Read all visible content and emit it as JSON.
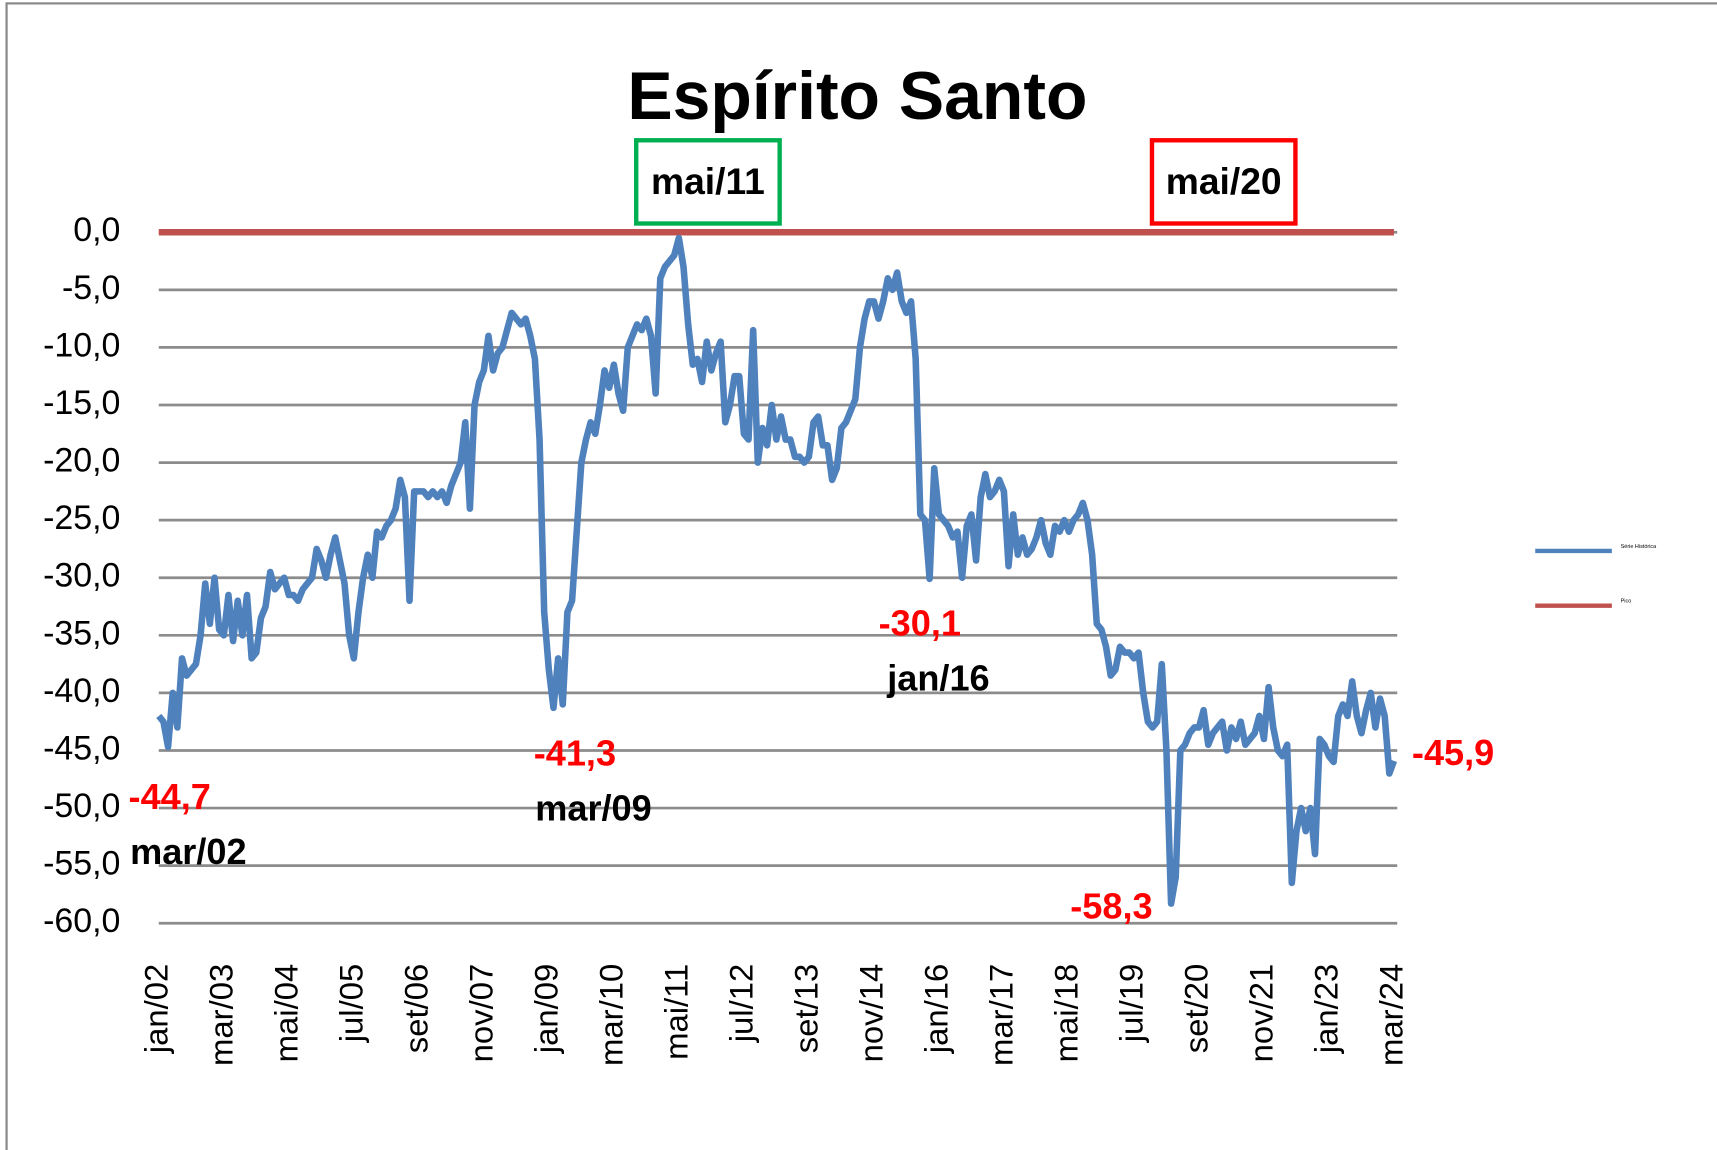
{
  "chart_data": {
    "type": "line",
    "title": "Espírito Santo",
    "markers": [
      {
        "label": "mai/11",
        "color": "#00b050"
      },
      {
        "label": "mai/20",
        "color": "#ff0000"
      }
    ],
    "annotations": [
      {
        "text": "-44,7",
        "value": -44.7,
        "date": "mar/02"
      },
      {
        "text": "-41,3",
        "value": -41.3,
        "date": "mar/09"
      },
      {
        "text": "-30,1",
        "value": -30.1,
        "date": "jan/16"
      },
      {
        "text": "-58,3",
        "value": -58.3
      },
      {
        "text": "-45,9",
        "value": -45.9
      }
    ],
    "ylim": [
      -60,
      0
    ],
    "yticks": [
      {
        "value": 0,
        "label": "0,0"
      },
      {
        "value": -5,
        "label": "-5,0"
      },
      {
        "value": -10,
        "label": "-10,0"
      },
      {
        "value": -15,
        "label": "-15,0"
      },
      {
        "value": -20,
        "label": "-20,0"
      },
      {
        "value": -25,
        "label": "-25,0"
      },
      {
        "value": -30,
        "label": "-30,0"
      },
      {
        "value": -35,
        "label": "-35,0"
      },
      {
        "value": -40,
        "label": "-40,0"
      },
      {
        "value": -45,
        "label": "-45,0"
      },
      {
        "value": -50,
        "label": "-50,0"
      },
      {
        "value": -55,
        "label": "-55,0"
      },
      {
        "value": -60,
        "label": "-60,0"
      }
    ],
    "grid": true,
    "legend": "right",
    "categories": [
      "jan/02",
      null,
      null,
      null,
      null,
      null,
      null,
      null,
      null,
      null,
      null,
      null,
      null,
      null,
      "mar/03",
      null,
      null,
      null,
      null,
      null,
      null,
      null,
      null,
      null,
      null,
      null,
      null,
      null,
      "mai/04",
      null,
      null,
      null,
      null,
      null,
      null,
      null,
      null,
      null,
      null,
      null,
      null,
      null,
      "jul/05",
      null,
      null,
      null,
      null,
      null,
      null,
      null,
      null,
      null,
      null,
      null,
      null,
      null,
      "set/06",
      null,
      null,
      null,
      null,
      null,
      null,
      null,
      null,
      null,
      null,
      null,
      null,
      null,
      "nov/07",
      null,
      null,
      null,
      null,
      null,
      null,
      null,
      null,
      null,
      null,
      null,
      null,
      null,
      "jan/09",
      null,
      null,
      null,
      null,
      null,
      null,
      null,
      null,
      null,
      null,
      null,
      null,
      null,
      "mar/10",
      null,
      null,
      null,
      null,
      null,
      null,
      null,
      null,
      null,
      null,
      null,
      null,
      null,
      "mai/11",
      null,
      null,
      null,
      null,
      null,
      null,
      null,
      null,
      null,
      null,
      null,
      null,
      null,
      "jul/12",
      null,
      null,
      null,
      null,
      null,
      null,
      null,
      null,
      null,
      null,
      null,
      null,
      null,
      "set/13",
      null,
      null,
      null,
      null,
      null,
      null,
      null,
      null,
      null,
      null,
      null,
      null,
      null,
      "nov/14",
      null,
      null,
      null,
      null,
      null,
      null,
      null,
      null,
      null,
      null,
      null,
      null,
      null,
      "jan/16",
      null,
      null,
      null,
      null,
      null,
      null,
      null,
      null,
      null,
      null,
      null,
      null,
      null,
      "mar/17",
      null,
      null,
      null,
      null,
      null,
      null,
      null,
      null,
      null,
      null,
      null,
      null,
      null,
      "mai/18",
      null,
      null,
      null,
      null,
      null,
      null,
      null,
      null,
      null,
      null,
      null,
      null,
      null,
      "jul/19",
      null,
      null,
      null,
      null,
      null,
      null,
      null,
      null,
      null,
      null,
      null,
      null,
      null,
      "set/20",
      null,
      null,
      null,
      null,
      null,
      null,
      null,
      null,
      null,
      null,
      null,
      null,
      null,
      "nov/21",
      null,
      null,
      null,
      null,
      null,
      null,
      null,
      null,
      null,
      null,
      null,
      null,
      null,
      "jan/23",
      null,
      null,
      null,
      null,
      null,
      null,
      null,
      null,
      null,
      null,
      null,
      null,
      null,
      "mar/24"
    ],
    "series": [
      {
        "name": "Série Histórica",
        "color": "#4f81bd",
        "values": [
          -42,
          -42.5,
          -44.7,
          -40,
          -43,
          -37,
          -38.5,
          -38,
          -37.5,
          -35,
          -30.5,
          -34,
          -30,
          -34.5,
          -35,
          -31.5,
          -35.5,
          -32,
          -35,
          -31.5,
          -37,
          -36.5,
          -33.5,
          -32.5,
          -29.5,
          -31,
          -30.5,
          -30,
          -31.5,
          -31.5,
          -32,
          -31,
          -30.5,
          -30,
          -27.5,
          -28.5,
          -30,
          -28,
          -26.5,
          -28.5,
          -30.5,
          -35,
          -37,
          -33,
          -30,
          -28,
          -30,
          -26,
          -26.5,
          -25.5,
          -25,
          -24,
          -21.5,
          -23,
          -32,
          -22.5,
          -22.5,
          -22.5,
          -23,
          -22.5,
          -23,
          -22.5,
          -23.5,
          -22,
          -21,
          -20,
          -16.5,
          -24,
          -15,
          -13,
          -12,
          -9,
          -12,
          -10.5,
          -10,
          -8.5,
          -7,
          -7.5,
          -8,
          -7.5,
          -9,
          -11,
          -18,
          -33,
          -38,
          -41.3,
          -37,
          -41,
          -33,
          -32,
          -26,
          -20,
          -18,
          -16.5,
          -17.5,
          -15,
          -12,
          -13.5,
          -11.5,
          -14,
          -15.5,
          -10,
          -9,
          -8,
          -8.5,
          -7.5,
          -9,
          -14,
          -4,
          -3,
          -2.5,
          -2,
          -0.5,
          -3,
          -8,
          -11.5,
          -11,
          -13,
          -9.5,
          -12,
          -10.5,
          -9.5,
          -16.5,
          -15,
          -12.5,
          -12.5,
          -17.5,
          -18,
          -8.5,
          -20,
          -17,
          -18.5,
          -15,
          -18,
          -16,
          -18,
          -18,
          -19.5,
          -19.5,
          -20,
          -19.5,
          -16.5,
          -16,
          -18.5,
          -18.5,
          -21.5,
          -20.5,
          -17,
          -16.5,
          -15.5,
          -14.5,
          -10,
          -7.5,
          -6,
          -6,
          -7.5,
          -6,
          -4,
          -5,
          -3.5,
          -6,
          -7,
          -6,
          -11,
          -24.5,
          -25,
          -30.1,
          -20.5,
          -24.5,
          -25,
          -25.5,
          -26.5,
          -26,
          -30,
          -25.5,
          -24.5,
          -28.5,
          -23,
          -21,
          -23,
          -22.5,
          -21.5,
          -22.5,
          -29,
          -24.5,
          -28,
          -26.5,
          -28,
          -27.5,
          -26.5,
          -25,
          -27,
          -28,
          -25.5,
          -26,
          -25,
          -26,
          -25,
          -24.5,
          -23.5,
          -25,
          -28,
          -34,
          -34.5,
          -36,
          -38.5,
          -38,
          -36,
          -36.5,
          -36.5,
          -37,
          -36.5,
          -40,
          -42.5,
          -43,
          -42.5,
          -37.5,
          -45,
          -58.3,
          -56,
          -45,
          -44.5,
          -43.5,
          -43,
          -43,
          -41.5,
          -44.5,
          -43.5,
          -43,
          -42.5,
          -45,
          -43,
          -44,
          -42.5,
          -44.5,
          -44,
          -43.5,
          -42,
          -44,
          -39.5,
          -43,
          -45,
          -45.5,
          -44.5,
          -56.5,
          -52,
          -50,
          -52,
          -50,
          -54,
          -44,
          -44.5,
          -45.5,
          -46,
          -42,
          -41,
          -42,
          -39,
          -42,
          -43.5,
          -41.5,
          -40,
          -43,
          -40.5,
          -42,
          -47,
          -45.9
        ]
      },
      {
        "name": "Pico",
        "color": "#c0504d",
        "values": [
          0,
          0,
          0,
          0,
          0,
          0,
          0,
          0,
          0,
          0,
          0,
          0,
          0,
          0,
          0,
          0,
          0,
          0,
          0,
          0,
          0,
          0,
          0,
          0,
          0,
          0,
          0,
          0,
          0,
          0,
          0,
          0,
          0,
          0,
          0,
          0,
          0,
          0,
          0,
          0,
          0,
          0,
          0,
          0,
          0,
          0,
          0,
          0,
          0,
          0,
          0,
          0,
          0,
          0,
          0,
          0,
          0,
          0,
          0,
          0,
          0,
          0,
          0,
          0,
          0,
          0,
          0,
          0,
          0,
          0,
          0,
          0,
          0,
          0,
          0,
          0,
          0,
          0,
          0,
          0,
          0,
          0,
          0,
          0,
          0,
          0,
          0,
          0,
          0,
          0,
          0,
          0,
          0,
          0,
          0,
          0,
          0,
          0,
          0,
          0,
          0,
          0,
          0,
          0,
          0,
          0,
          0,
          0,
          0,
          0,
          0,
          0,
          0,
          0,
          0,
          0,
          0,
          0,
          0,
          0,
          0,
          0,
          0,
          0,
          0,
          0,
          0,
          0,
          0,
          0,
          0,
          0,
          0,
          0,
          0,
          0,
          0,
          0,
          0,
          0,
          0,
          0,
          0,
          0,
          0,
          0,
          0,
          0,
          0,
          0,
          0,
          0,
          0,
          0,
          0,
          0,
          0,
          0,
          0,
          0,
          0,
          0,
          0,
          0,
          0,
          0,
          0,
          0,
          0,
          0,
          0,
          0,
          0,
          0,
          0,
          0,
          0,
          0,
          0,
          0,
          0,
          0,
          0,
          0,
          0,
          0,
          0,
          0,
          0,
          0,
          0,
          0,
          0,
          0,
          0,
          0,
          0,
          0,
          0,
          0,
          0,
          0,
          0,
          0,
          0,
          0,
          0,
          0,
          0,
          0,
          0,
          0,
          0,
          0,
          0,
          0,
          0,
          0,
          0,
          0,
          0,
          0,
          0,
          0,
          0,
          0,
          0,
          0,
          0,
          0,
          0,
          0,
          0,
          0,
          0,
          0,
          0,
          0,
          0,
          0,
          0,
          0,
          0,
          0,
          0,
          0,
          0,
          0,
          0,
          0,
          0,
          0,
          0,
          0,
          0,
          0,
          0,
          0,
          0,
          0,
          0,
          0,
          0,
          0,
          0,
          0,
          0
        ]
      }
    ]
  }
}
